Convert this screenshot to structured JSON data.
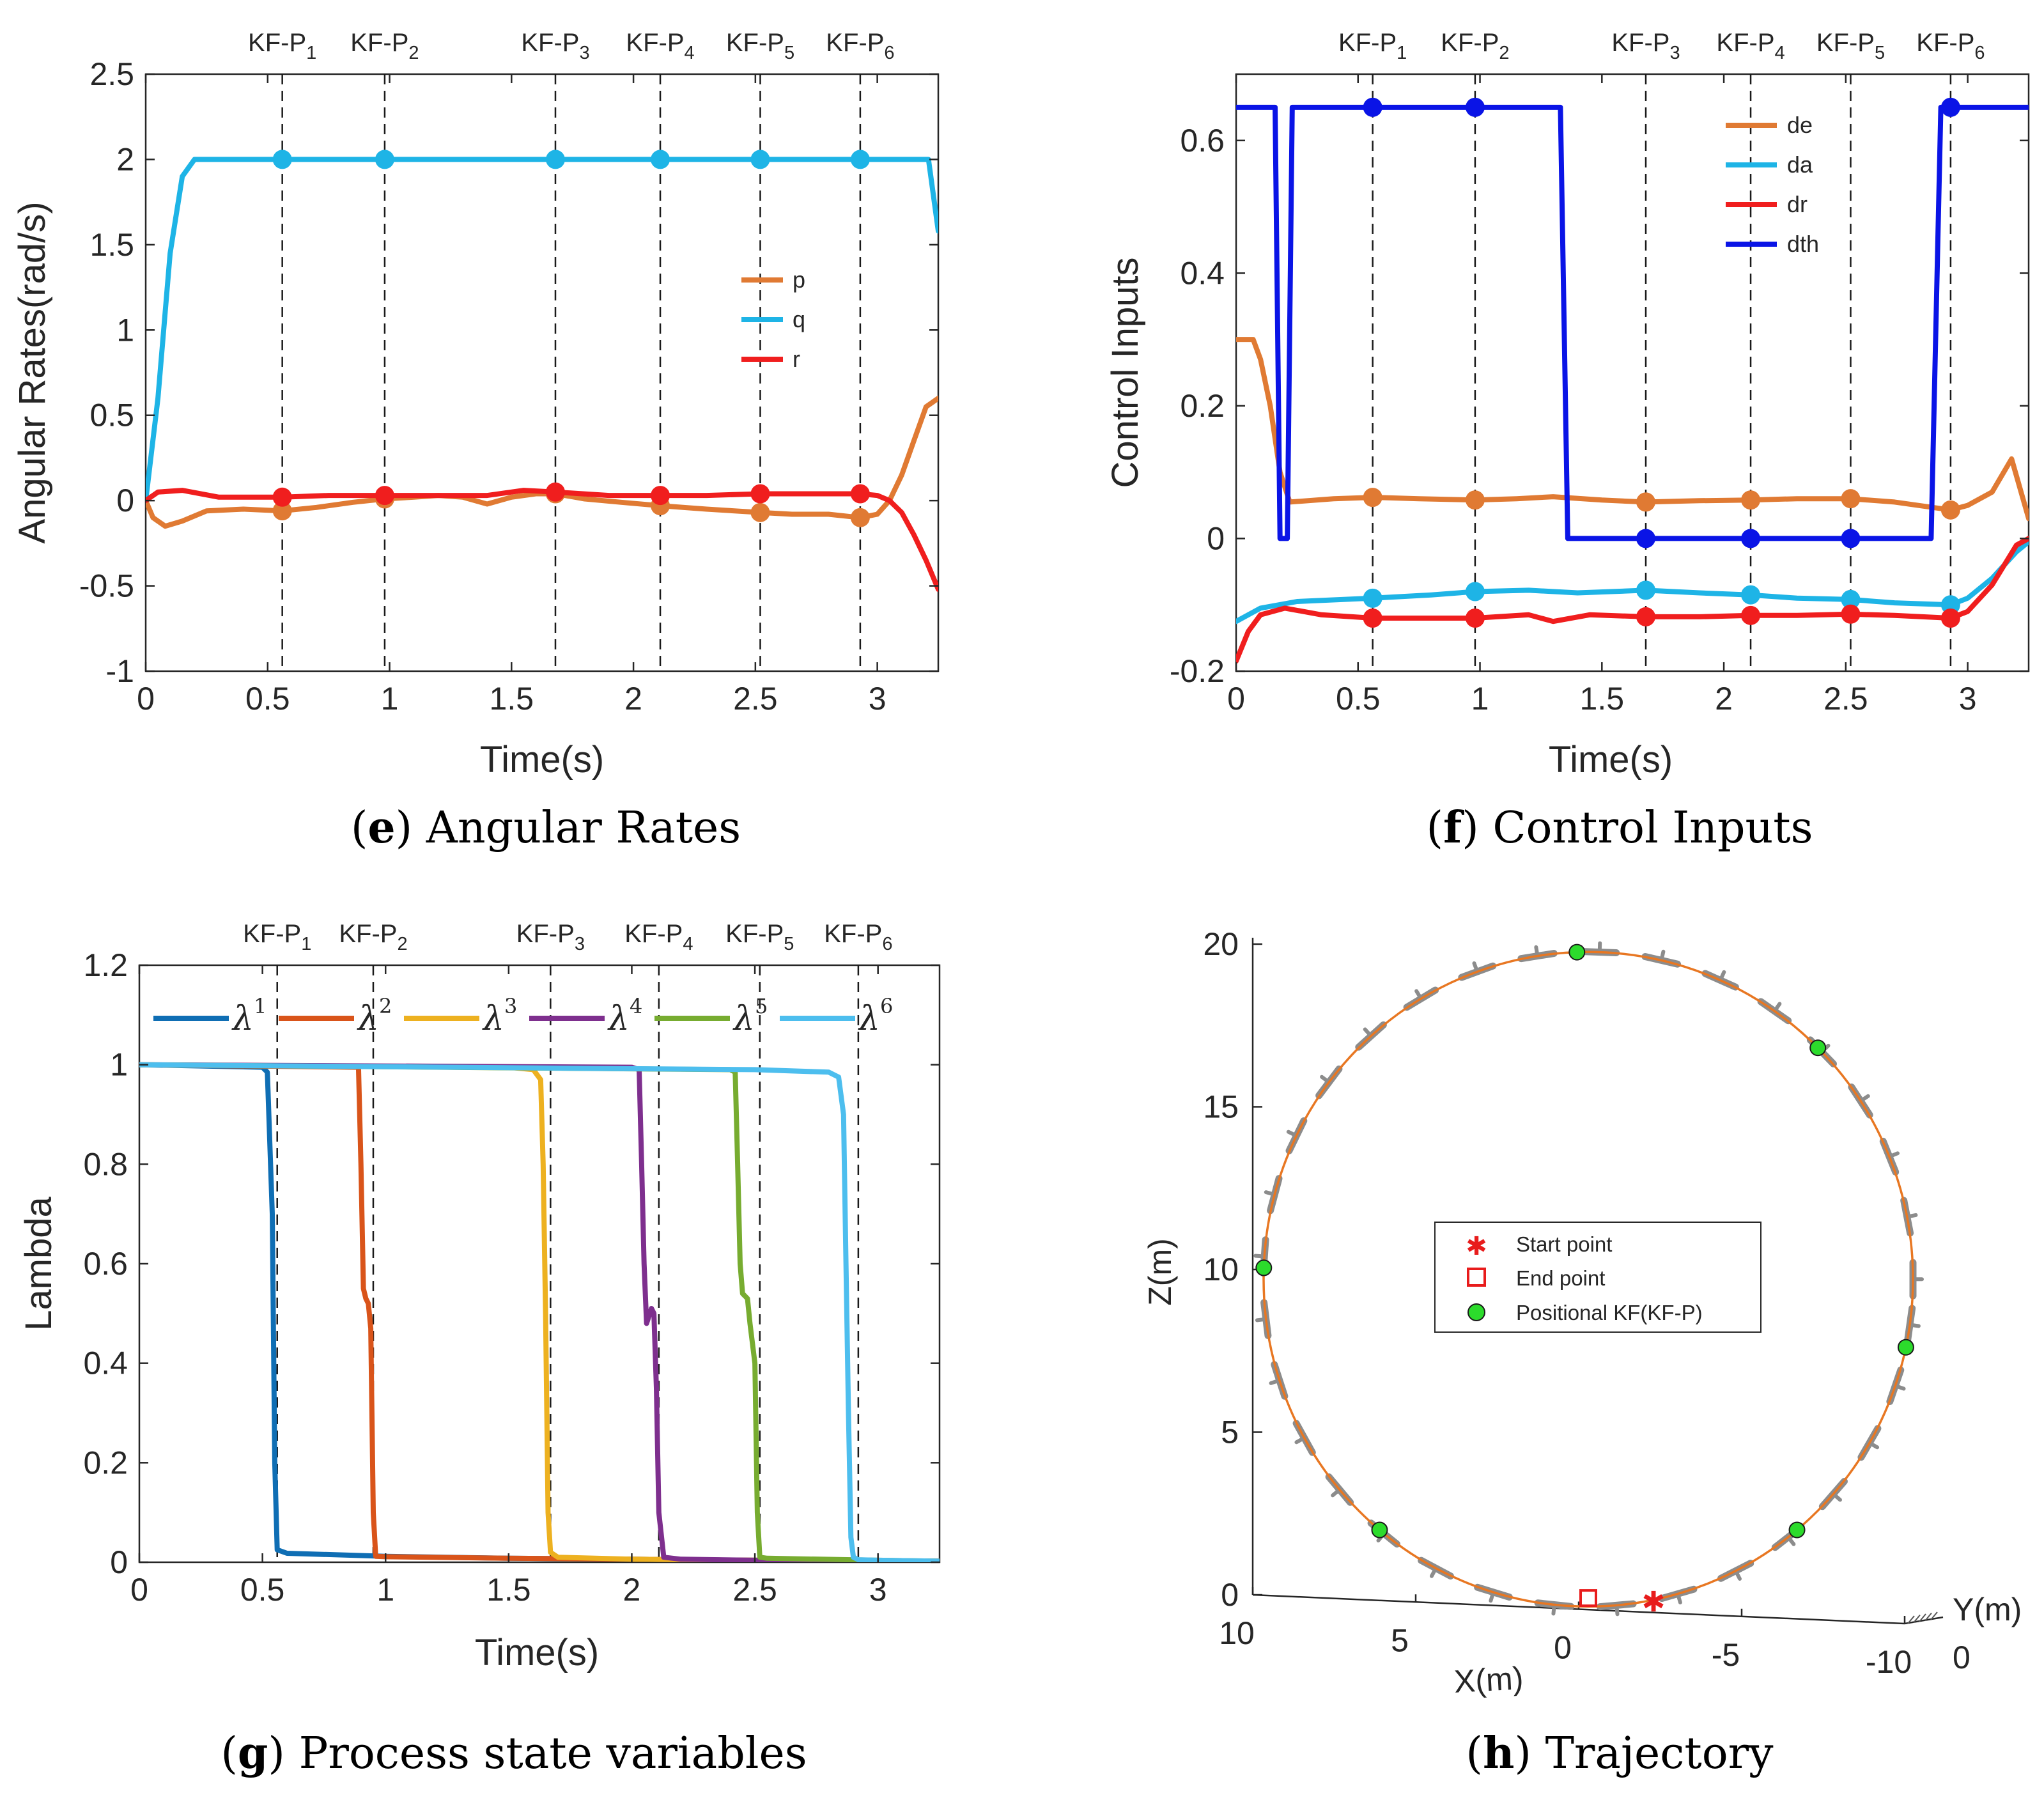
{
  "chart_data": [
    {
      "id": "e",
      "type": "line",
      "caption_letter": "e",
      "caption_text": "Angular Rates",
      "xlabel": "Time(s)",
      "ylabel": "Angular Rates(rad/s)",
      "xlim": [
        0,
        3.25
      ],
      "ylim": [
        -1,
        2.5
      ],
      "xticks": [
        0,
        0.5,
        1,
        1.5,
        2,
        2.5,
        3
      ],
      "xtick_labels": [
        "0",
        "0.5",
        "1",
        "1.5",
        "2",
        "2.5",
        "3"
      ],
      "yticks": [
        -1,
        -0.5,
        0,
        0.5,
        1,
        1.5,
        2,
        2.5
      ],
      "ytick_labels": [
        "-1",
        "-0.5",
        "0",
        "0.5",
        "1",
        "1.5",
        "2",
        "2.5"
      ],
      "keyframes": {
        "prefix": "KF-P",
        "times": [
          0.56,
          0.98,
          1.68,
          2.11,
          2.52,
          2.93
        ],
        "subscripts": [
          "1",
          "2",
          "3",
          "4",
          "5",
          "6"
        ]
      },
      "legend": {
        "location": "center-right",
        "entries": [
          "p",
          "q",
          "r"
        ]
      },
      "series": [
        {
          "name": "p",
          "color": "#E07A33",
          "x": [
            0,
            0.03,
            0.08,
            0.15,
            0.25,
            0.4,
            0.56,
            0.7,
            0.85,
            0.98,
            1.1,
            1.2,
            1.3,
            1.4,
            1.5,
            1.6,
            1.68,
            1.8,
            1.95,
            2.11,
            2.3,
            2.52,
            2.65,
            2.8,
            2.93,
            3.0,
            3.05,
            3.1,
            3.15,
            3.2,
            3.25
          ],
          "values": [
            0,
            -0.1,
            -0.15,
            -0.12,
            -0.06,
            -0.05,
            -0.06,
            -0.04,
            -0.01,
            0.01,
            0.02,
            0.03,
            0.02,
            -0.02,
            0.02,
            0.04,
            0.04,
            0.01,
            -0.01,
            -0.03,
            -0.05,
            -0.07,
            -0.08,
            -0.08,
            -0.1,
            -0.08,
            0.0,
            0.15,
            0.35,
            0.55,
            0.6
          ],
          "markers_at": [
            0.56,
            0.98,
            1.68,
            2.11,
            2.52,
            2.93
          ],
          "marker_values": [
            -0.06,
            0.01,
            0.04,
            -0.03,
            -0.07,
            -0.1
          ]
        },
        {
          "name": "q",
          "color": "#1EB4E6",
          "x": [
            0,
            0.05,
            0.1,
            0.15,
            0.2,
            0.56,
            0.98,
            1.68,
            2.11,
            2.52,
            2.93,
            3.21,
            3.25
          ],
          "values": [
            0,
            0.6,
            1.45,
            1.9,
            2.0,
            2.0,
            2.0,
            2.0,
            2.0,
            2.0,
            2.0,
            2.0,
            1.58
          ],
          "markers_at": [
            0.56,
            0.98,
            1.68,
            2.11,
            2.52,
            2.93
          ],
          "marker_values": [
            2,
            2,
            2,
            2,
            2,
            2
          ]
        },
        {
          "name": "r",
          "color": "#F01E1E",
          "x": [
            0,
            0.05,
            0.15,
            0.3,
            0.45,
            0.56,
            0.75,
            0.98,
            1.2,
            1.4,
            1.55,
            1.68,
            1.9,
            2.11,
            2.3,
            2.52,
            2.7,
            2.93,
            3.0,
            3.05,
            3.1,
            3.15,
            3.2,
            3.25
          ],
          "values": [
            0.0,
            0.05,
            0.06,
            0.02,
            0.02,
            0.02,
            0.03,
            0.03,
            0.03,
            0.03,
            0.06,
            0.05,
            0.03,
            0.03,
            0.03,
            0.04,
            0.04,
            0.04,
            0.03,
            0.0,
            -0.07,
            -0.2,
            -0.35,
            -0.52
          ],
          "markers_at": [
            0.56,
            0.98,
            1.68,
            2.11,
            2.52,
            2.93
          ],
          "marker_values": [
            0.02,
            0.03,
            0.05,
            0.03,
            0.04,
            0.04
          ]
        }
      ]
    },
    {
      "id": "f",
      "type": "line",
      "caption_letter": "f",
      "caption_text": "Control Inputs",
      "xlabel": "Time(s)",
      "ylabel": "Control Inputs",
      "xlim": [
        0,
        3.25
      ],
      "ylim": [
        -0.2,
        0.7
      ],
      "xticks": [
        0,
        0.5,
        1,
        1.5,
        2,
        2.5,
        3
      ],
      "xtick_labels": [
        "0",
        "0.5",
        "1",
        "1.5",
        "2",
        "2.5",
        "3"
      ],
      "yticks": [
        -0.2,
        0,
        0.2,
        0.4,
        0.6
      ],
      "ytick_labels": [
        "-0.2",
        "0",
        "0.2",
        "0.4",
        "0.6"
      ],
      "keyframes": {
        "prefix": "KF-P",
        "times": [
          0.56,
          0.98,
          1.68,
          2.11,
          2.52,
          2.93
        ],
        "subscripts": [
          "1",
          "2",
          "3",
          "4",
          "5",
          "6"
        ]
      },
      "legend": {
        "location": "top-right",
        "entries": [
          "de",
          "da",
          "dr",
          "dth"
        ]
      },
      "series": [
        {
          "name": "de",
          "color": "#E07A33",
          "x": [
            0,
            0.07,
            0.1,
            0.14,
            0.18,
            0.22,
            0.4,
            0.56,
            0.75,
            0.98,
            1.15,
            1.3,
            1.5,
            1.68,
            1.9,
            2.11,
            2.3,
            2.52,
            2.7,
            2.93,
            3.0,
            3.1,
            3.18,
            3.25
          ],
          "values": [
            0.3,
            0.3,
            0.27,
            0.2,
            0.1,
            0.055,
            0.06,
            0.062,
            0.06,
            0.058,
            0.06,
            0.063,
            0.058,
            0.055,
            0.057,
            0.058,
            0.06,
            0.06,
            0.055,
            0.043,
            0.05,
            0.07,
            0.12,
            0.03
          ],
          "markers_at": [
            0.56,
            0.98,
            1.68,
            2.11,
            2.52,
            2.93
          ],
          "marker_values": [
            0.062,
            0.058,
            0.055,
            0.058,
            0.06,
            0.043
          ]
        },
        {
          "name": "da",
          "color": "#1EB4E6",
          "x": [
            0,
            0.1,
            0.25,
            0.56,
            0.8,
            0.98,
            1.2,
            1.4,
            1.68,
            1.9,
            2.11,
            2.3,
            2.52,
            2.7,
            2.93,
            3.0,
            3.1,
            3.2,
            3.25
          ],
          "values": [
            -0.125,
            -0.105,
            -0.095,
            -0.09,
            -0.085,
            -0.08,
            -0.078,
            -0.082,
            -0.078,
            -0.082,
            -0.085,
            -0.09,
            -0.092,
            -0.097,
            -0.1,
            -0.09,
            -0.06,
            -0.02,
            -0.005
          ],
          "markers_at": [
            0.56,
            0.98,
            1.68,
            2.11,
            2.52,
            2.93
          ],
          "marker_values": [
            -0.09,
            -0.08,
            -0.078,
            -0.085,
            -0.092,
            -0.1
          ]
        },
        {
          "name": "dr",
          "color": "#F01E1E",
          "x": [
            0,
            0.05,
            0.1,
            0.2,
            0.35,
            0.56,
            0.98,
            1.2,
            1.3,
            1.45,
            1.68,
            1.9,
            2.11,
            2.3,
            2.52,
            2.7,
            2.93,
            3.0,
            3.1,
            3.2,
            3.25
          ],
          "values": [
            -0.185,
            -0.14,
            -0.115,
            -0.105,
            -0.115,
            -0.12,
            -0.12,
            -0.115,
            -0.125,
            -0.115,
            -0.118,
            -0.118,
            -0.116,
            -0.116,
            -0.114,
            -0.116,
            -0.12,
            -0.11,
            -0.07,
            -0.01,
            0.0
          ],
          "markers_at": [
            0.56,
            0.98,
            1.68,
            2.11,
            2.52,
            2.93
          ],
          "marker_values": [
            -0.12,
            -0.12,
            -0.118,
            -0.116,
            -0.114,
            -0.12
          ]
        },
        {
          "name": "dth",
          "color": "#0A14E6",
          "x": [
            0,
            0.16,
            0.18,
            0.21,
            0.23,
            0.56,
            0.98,
            1.33,
            1.36,
            1.68,
            2.11,
            2.52,
            2.85,
            2.89,
            2.93,
            3.25
          ],
          "values": [
            0.65,
            0.65,
            0.0,
            0.0,
            0.65,
            0.65,
            0.65,
            0.65,
            0.0,
            0.0,
            0.0,
            0.0,
            0.0,
            0.65,
            0.65,
            0.65
          ],
          "markers_at": [
            0.56,
            0.98,
            1.68,
            2.11,
            2.52,
            2.93
          ],
          "marker_values": [
            0.65,
            0.65,
            0.0,
            0.0,
            0.0,
            0.65
          ]
        }
      ]
    },
    {
      "id": "g",
      "type": "line",
      "caption_letter": "g",
      "caption_text": "Process state variables",
      "xlabel": "Time(s)",
      "ylabel": "Lambda",
      "xlim": [
        0,
        3.25
      ],
      "ylim": [
        0,
        1.2
      ],
      "xticks": [
        0,
        0.5,
        1,
        1.5,
        2,
        2.5,
        3
      ],
      "xtick_labels": [
        "0",
        "0.5",
        "1",
        "1.5",
        "2",
        "2.5",
        "3"
      ],
      "yticks": [
        0,
        0.2,
        0.4,
        0.6,
        0.8,
        1,
        1.2
      ],
      "ytick_labels": [
        "0",
        "0.2",
        "0.4",
        "0.6",
        "0.8",
        "1",
        "1.2"
      ],
      "keyframes": {
        "prefix": "KF-P",
        "times": [
          0.56,
          0.95,
          1.67,
          2.11,
          2.52,
          2.92
        ],
        "subscripts": [
          "1",
          "2",
          "3",
          "4",
          "5",
          "6"
        ]
      },
      "legend": {
        "location": "top",
        "orientation": "horizontal",
        "symbol": "λ",
        "superscripts": [
          "1",
          "2",
          "3",
          "4",
          "5",
          "6"
        ]
      },
      "series": [
        {
          "name": "λ1",
          "color": "#0F6EB4",
          "x": [
            0,
            0.5,
            0.52,
            0.54,
            0.55,
            0.56,
            0.6,
            1.0,
            1.5,
            2.0,
            2.5,
            3.0,
            3.25
          ],
          "values": [
            1.0,
            0.995,
            0.985,
            0.7,
            0.2,
            0.025,
            0.018,
            0.012,
            0.008,
            0.006,
            0.004,
            0.003,
            0.002
          ]
        },
        {
          "name": "λ2",
          "color": "#D9541A",
          "x": [
            0,
            0.89,
            0.9,
            0.91,
            0.92,
            0.93,
            0.94,
            0.95,
            0.96,
            1.0,
            1.5,
            2.0,
            2.5,
            3.0,
            3.25
          ],
          "values": [
            1.0,
            0.995,
            0.8,
            0.55,
            0.53,
            0.52,
            0.47,
            0.1,
            0.012,
            0.011,
            0.008,
            0.006,
            0.004,
            0.003,
            0.002
          ]
        },
        {
          "name": "λ3",
          "color": "#EDB120",
          "x": [
            0,
            1.5,
            1.6,
            1.63,
            1.64,
            1.65,
            1.66,
            1.67,
            1.7,
            2.0,
            2.5,
            3.0,
            3.25
          ],
          "values": [
            1.0,
            0.995,
            0.99,
            0.97,
            0.8,
            0.5,
            0.1,
            0.02,
            0.01,
            0.006,
            0.004,
            0.003,
            0.002
          ]
        },
        {
          "name": "λ4",
          "color": "#7E2F8E",
          "x": [
            0,
            2.0,
            2.03,
            2.04,
            2.05,
            2.06,
            2.08,
            2.09,
            2.1,
            2.11,
            2.13,
            2.2,
            2.5,
            3.0,
            3.25
          ],
          "values": [
            1.0,
            0.995,
            0.99,
            0.8,
            0.6,
            0.48,
            0.51,
            0.5,
            0.35,
            0.1,
            0.01,
            0.006,
            0.004,
            0.003,
            0.002
          ]
        },
        {
          "name": "λ5",
          "color": "#77AC30",
          "x": [
            0,
            2.4,
            2.42,
            2.43,
            2.44,
            2.45,
            2.47,
            2.48,
            2.5,
            2.51,
            2.52,
            2.55,
            3.0,
            3.25
          ],
          "values": [
            1.0,
            0.99,
            0.985,
            0.8,
            0.6,
            0.54,
            0.53,
            0.48,
            0.4,
            0.1,
            0.01,
            0.008,
            0.004,
            0.002
          ]
        },
        {
          "name": "λ6",
          "color": "#4DBEEE",
          "x": [
            0,
            2.5,
            2.8,
            2.84,
            2.86,
            2.87,
            2.88,
            2.89,
            2.9,
            2.92,
            3.0,
            3.25
          ],
          "values": [
            1.0,
            0.99,
            0.985,
            0.975,
            0.9,
            0.6,
            0.3,
            0.05,
            0.01,
            0.005,
            0.004,
            0.002
          ]
        }
      ]
    },
    {
      "id": "h",
      "type": "line",
      "subtype": "3d-trajectory",
      "caption_letter": "h",
      "caption_text": "Trajectory",
      "xlabel": "X(m)",
      "ylabel": "Y(m)",
      "zlabel": "Z(m)",
      "z_ticks": [
        "0",
        "5",
        "10",
        "15",
        "20"
      ],
      "x_ticks": [
        "10",
        "5",
        "0",
        "-5",
        "-10"
      ],
      "y_ticks": [
        "0"
      ],
      "zlim": [
        0,
        20
      ],
      "xlim": [
        -10,
        10
      ],
      "circle": {
        "center_x": 0,
        "center_z": 9.7,
        "radius": 9.8,
        "color": "#E87722"
      },
      "start_point": {
        "x": -2.0,
        "z": -0.2
      },
      "end_point": {
        "x": 0.0,
        "z": -0.1
      },
      "keyframe_points_angle_deg": [
        92,
        45,
        -12,
        -50,
        178,
        230
      ],
      "keyframe_color": "#2CDB2C",
      "legend": {
        "location": "center",
        "entries": [
          "Start point",
          "End point",
          "Positional KF(KF-P)"
        ]
      }
    }
  ]
}
